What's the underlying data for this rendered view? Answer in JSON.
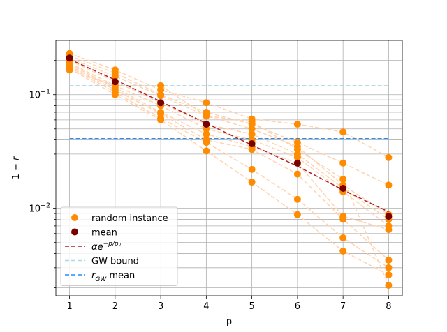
{
  "chart_data": {
    "type": "scatter",
    "xlabel": "p",
    "ylabel": "1 − r",
    "ylabel_italic_var": "r",
    "y_scale": "log",
    "xlim": [
      0.7,
      8.3
    ],
    "ylim": [
      0.0017,
      0.3
    ],
    "x_ticks": [
      1,
      2,
      3,
      4,
      5,
      6,
      7,
      8
    ],
    "y_major_ticks": [
      0.01,
      0.1
    ],
    "y_major_tick_labels": [
      "10^-2",
      "10^-1"
    ],
    "grid": true,
    "legend_position": "lower-left",
    "colors": {
      "random_instance": "#ff8c00",
      "instance_line": "#ffd3b0",
      "mean": "#7a0000",
      "fit": "#b22222",
      "gw_bound": "#add8e6",
      "gw_mean": "#1e90ff",
      "grid": "#b0b0b0"
    },
    "legend": [
      {
        "key": "random_instance",
        "label": "random instance",
        "kind": "marker"
      },
      {
        "key": "mean",
        "label": "mean",
        "kind": "marker"
      },
      {
        "key": "fit",
        "label": "αe",
        "sup": "−p/p₀",
        "kind": "dashed"
      },
      {
        "key": "gw_bound",
        "label": "GW bound",
        "kind": "dashed"
      },
      {
        "key": "gw_mean",
        "label": "r",
        "sub": "GW",
        "suffix": " mean",
        "kind": "dashed"
      }
    ],
    "instances": [
      [
        0.23,
        0.165,
        0.11,
        0.085,
        0.061,
        0.055,
        0.047,
        0.028
      ],
      [
        0.22,
        0.155,
        0.1,
        0.07,
        0.055,
        0.038,
        0.025,
        0.016
      ],
      [
        0.21,
        0.145,
        0.098,
        0.065,
        0.05,
        0.035,
        0.016,
        0.0088
      ],
      [
        0.2,
        0.13,
        0.085,
        0.055,
        0.045,
        0.03,
        0.015,
        0.008
      ],
      [
        0.19,
        0.12,
        0.08,
        0.05,
        0.04,
        0.028,
        0.014,
        0.007
      ],
      [
        0.185,
        0.115,
        0.07,
        0.045,
        0.035,
        0.025,
        0.0085,
        0.0065
      ],
      [
        0.18,
        0.11,
        0.068,
        0.04,
        0.033,
        0.02,
        0.008,
        0.0035
      ],
      [
        0.175,
        0.105,
        0.062,
        0.038,
        0.022,
        0.012,
        0.0055,
        0.003
      ],
      [
        0.17,
        0.1,
        0.06,
        0.032,
        0.017,
        0.0088,
        0.0042,
        0.0026
      ],
      [
        0.165,
        0.12,
        0.12,
        0.065,
        0.058,
        0.033,
        0.018,
        0.0021
      ]
    ],
    "mean": [
      0.21,
      0.13,
      0.085,
      0.055,
      0.037,
      0.025,
      0.015,
      0.0085
    ],
    "fit": [
      0.205,
      0.135,
      0.087,
      0.056,
      0.036,
      0.0235,
      0.0145,
      0.0093
    ],
    "gw_bound": 0.12,
    "gw_mean": 0.041
  }
}
